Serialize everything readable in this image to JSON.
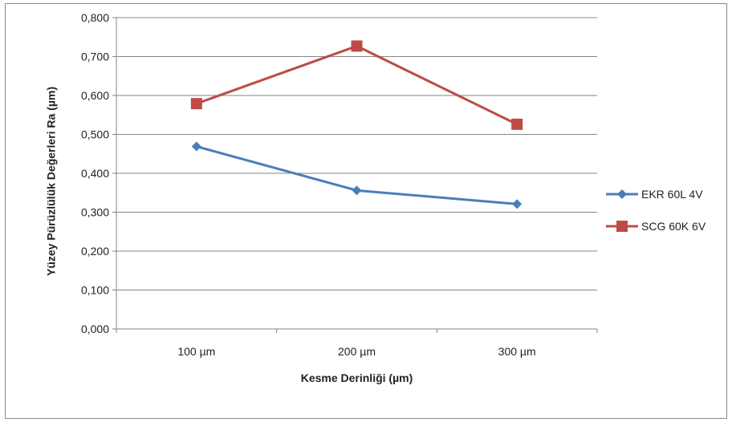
{
  "chart_data": {
    "type": "line",
    "title": "",
    "xlabel": "Kesme Derinliği (µm)",
    "ylabel": "Yüzey Pürüzlülük Değerleri  Ra (µm)",
    "categories": [
      "100 µm",
      "200 µm",
      "300 µm"
    ],
    "ylim": [
      0,
      0.8
    ],
    "yticks": [
      "0,000",
      "0,100",
      "0,200",
      "0,300",
      "0,400",
      "0,500",
      "0,600",
      "0,700",
      "0,800"
    ],
    "grid": true,
    "legend_position": "right",
    "series": [
      {
        "name": "EKR 60L 4V",
        "values": [
          0.469,
          0.356,
          0.321
        ],
        "color": "#4a7ebb",
        "marker": "diamond"
      },
      {
        "name": "SCG 60K 6V",
        "values": [
          0.579,
          0.727,
          0.526
        ],
        "color": "#be4b48",
        "marker": "square"
      }
    ]
  }
}
